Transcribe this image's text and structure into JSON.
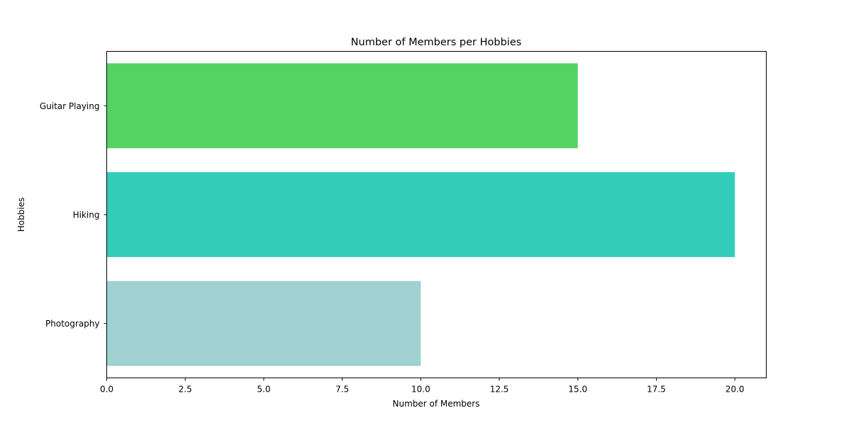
{
  "chart_data": {
    "type": "bar",
    "orientation": "horizontal",
    "title": "Number of Members per Hobbies",
    "xlabel": "Number of Members",
    "ylabel": "Hobbies",
    "categories": [
      "Guitar Playing",
      "Hiking",
      "Photography"
    ],
    "values": [
      15,
      20,
      10
    ],
    "colors": [
      "#54d363",
      "#31cdb9",
      "#9ed1cf"
    ],
    "xlim": [
      0,
      21
    ],
    "xticks": [
      "0.0",
      "2.5",
      "5.0",
      "7.5",
      "10.0",
      "12.5",
      "15.0",
      "17.5",
      "20.0"
    ],
    "grid": false,
    "legend": "none"
  }
}
